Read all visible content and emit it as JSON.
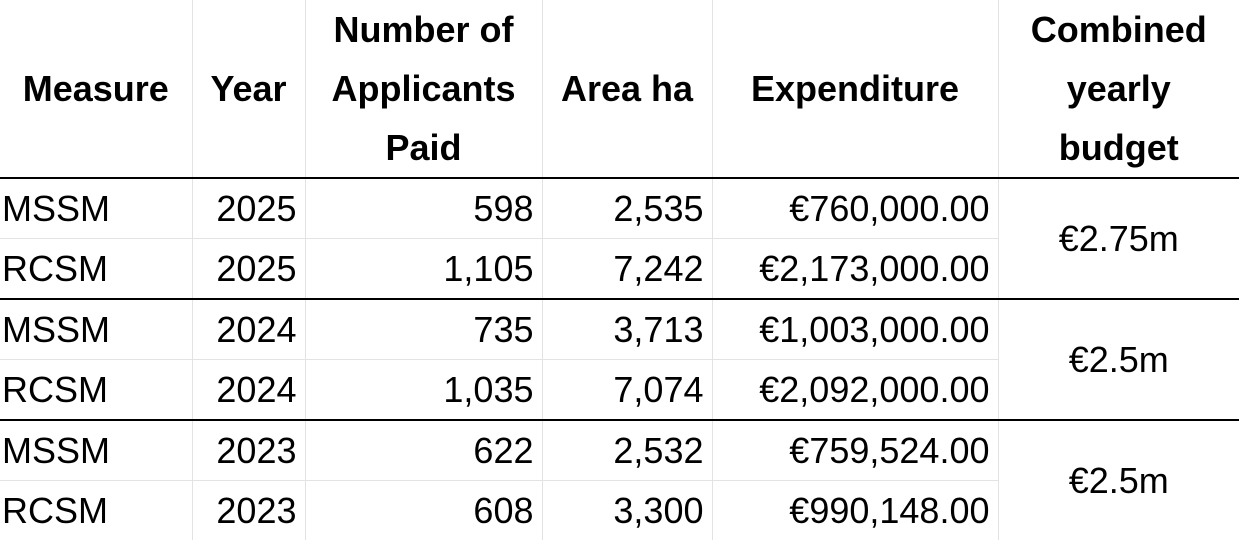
{
  "table": {
    "headers": [
      "Measure",
      "Year",
      "Number of Applicants Paid",
      "Area ha",
      "Expenditure",
      "Combined yearly budget"
    ],
    "rows": [
      [
        "MSSM",
        "2025",
        "598",
        "2,535",
        "€760,000.00"
      ],
      [
        "RCSM",
        "2025",
        "1,105",
        "7,242",
        "€2,173,000.00"
      ],
      [
        "MSSM",
        "2024",
        "735",
        "3,713",
        "€1,003,000.00"
      ],
      [
        "RCSM",
        "2024",
        "1,035",
        "7,074",
        "€2,092,000.00"
      ],
      [
        "MSSM",
        "2023",
        "622",
        "2,532",
        "€759,524.00"
      ],
      [
        "RCSM",
        "2023",
        "608",
        "3,300",
        "€990,148.00"
      ]
    ],
    "budgets": [
      "€2.75m",
      "€2.5m",
      "€2.5m"
    ]
  }
}
